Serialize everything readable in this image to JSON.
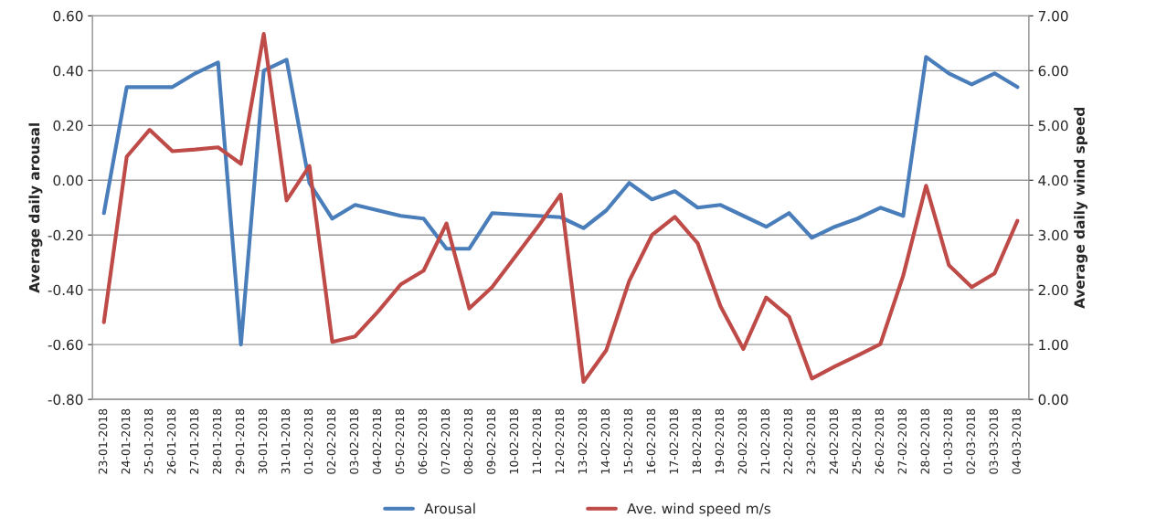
{
  "chart_data": {
    "type": "line",
    "categories": [
      "23-01-2018",
      "24-01-2018",
      "25-01-2018",
      "26-01-2018",
      "27-01-2018",
      "28-01-2018",
      "29-01-2018",
      "30-01-2018",
      "31-01-2018",
      "01-02-2018",
      "02-02-2018",
      "03-02-2018",
      "04-02-2018",
      "05-02-2018",
      "06-02-2018",
      "07-02-2018",
      "08-02-2018",
      "09-02-2018",
      "10-02-2018",
      "11-02-2018",
      "12-02-2018",
      "13-02-2018",
      "14-02-2018",
      "15-02-2018",
      "16-02-2018",
      "17-02-2018",
      "18-02-2018",
      "19-02-2018",
      "20-02-2018",
      "21-02-2018",
      "22-02-2018",
      "23-02-2018",
      "24-02-2018",
      "25-02-2018",
      "26-02-2018",
      "27-02-2018",
      "28-02-2018",
      "01-03-2018",
      "02-03-2018",
      "03-03-2018",
      "04-03-2018"
    ],
    "series": [
      {
        "name": "Arousal",
        "color": "#4a7ebb",
        "values": [
          -0.12,
          0.34,
          0.34,
          0.34,
          0.39,
          0.43,
          -0.6,
          0.4,
          0.44,
          -0.01,
          -0.14,
          -0.09,
          -0.11,
          -0.13,
          -0.14,
          -0.25,
          -0.25,
          -0.12,
          -0.125,
          -0.13,
          -0.135,
          -0.175,
          -0.11,
          -0.01,
          -0.07,
          -0.04,
          -0.1,
          -0.09,
          -0.13,
          -0.17,
          -0.12,
          -0.21,
          -0.17,
          -0.14,
          -0.1,
          -0.13,
          0.45,
          0.39,
          0.35,
          0.39,
          0.34
        ]
      },
      {
        "name": "Ave. wind speed m/s",
        "color": "#be4b48",
        "axis": "y2",
        "values": [
          1.41,
          4.43,
          4.92,
          4.53,
          4.56,
          4.6,
          4.3,
          6.67,
          3.63,
          4.26,
          1.05,
          1.15,
          1.6,
          2.1,
          2.35,
          3.21,
          1.66,
          2.05,
          2.6,
          3.15,
          3.74,
          0.32,
          0.9,
          2.16,
          3.0,
          3.33,
          2.85,
          1.7,
          0.92,
          1.86,
          1.51,
          0.38,
          0.6,
          0.8,
          1.01,
          2.26,
          3.9,
          2.45,
          2.05,
          2.3,
          3.26
        ]
      }
    ],
    "ylabel": "Average daily arousal",
    "y2label": "Average daily wind speed",
    "ylim": [
      -0.8,
      0.6
    ],
    "yticks": [
      {
        "value": -0.8,
        "label": "-0.80"
      },
      {
        "value": -0.6,
        "label": "-0.60"
      },
      {
        "value": -0.4,
        "label": "-0.40"
      },
      {
        "value": -0.2,
        "label": "-0.20"
      },
      {
        "value": 0,
        "label": "0.00"
      },
      {
        "value": 0.2,
        "label": "0.20"
      },
      {
        "value": 0.4,
        "label": "0.40"
      },
      {
        "value": 0.6,
        "label": "0.60"
      }
    ],
    "y2lim": [
      0,
      7
    ],
    "y2ticks": [
      {
        "value": 0,
        "label": "0.00"
      },
      {
        "value": 1,
        "label": "1.00"
      },
      {
        "value": 2,
        "label": "2.00"
      },
      {
        "value": 3,
        "label": "3.00"
      },
      {
        "value": 4,
        "label": "4.00"
      },
      {
        "value": 5,
        "label": "5.00"
      },
      {
        "value": 6,
        "label": "6.00"
      },
      {
        "value": 7,
        "label": "7.00"
      }
    ],
    "grid": "y",
    "legend": "bottom",
    "marker": "none",
    "line_style": "solid"
  }
}
